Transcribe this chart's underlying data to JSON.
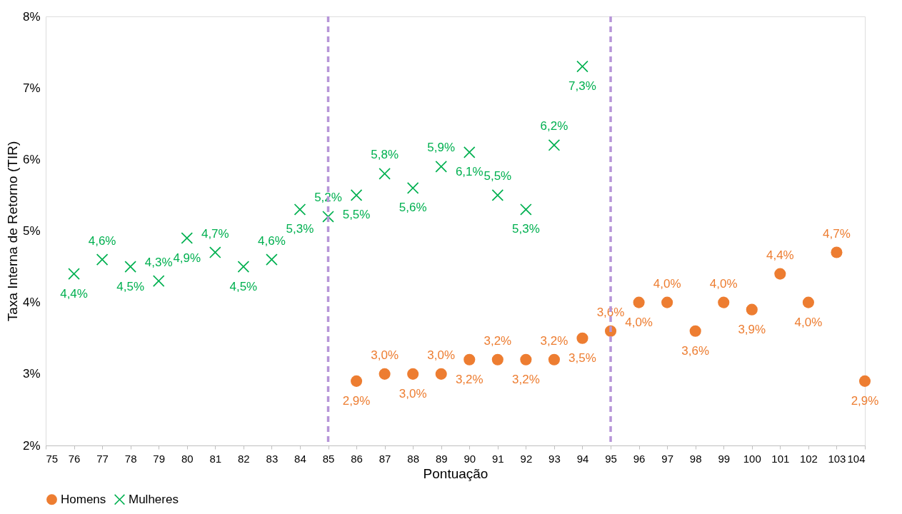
{
  "chart_data": {
    "type": "scatter",
    "xlabel": "Pontuação",
    "ylabel": "Taxa Interna de Retorno (TIR)",
    "xlim": [
      75,
      104
    ],
    "xticks": [
      75,
      76,
      77,
      78,
      79,
      80,
      81,
      82,
      83,
      84,
      85,
      86,
      87,
      88,
      89,
      90,
      91,
      92,
      93,
      94,
      95,
      96,
      97,
      98,
      99,
      100,
      101,
      102,
      103,
      104
    ],
    "ylim": [
      2,
      8
    ],
    "yticks": [
      {
        "value": 2,
        "label": "2%"
      },
      {
        "value": 3,
        "label": "3%"
      },
      {
        "value": 4,
        "label": "4%"
      },
      {
        "value": 5,
        "label": "5%"
      },
      {
        "value": 6,
        "label": "6%"
      },
      {
        "value": 7,
        "label": "7%"
      },
      {
        "value": 8,
        "label": "8%"
      }
    ],
    "grid": false,
    "legend": "bottom",
    "series": [
      {
        "name": "Homens",
        "color": "#ed7d31",
        "marker": "circle",
        "x": [
          86,
          87,
          88,
          89,
          90,
          91,
          92,
          93,
          94,
          95,
          96,
          97,
          98,
          99,
          100,
          101,
          102,
          103,
          104
        ],
        "values": [
          2.9,
          3.0,
          3.0,
          3.0,
          3.2,
          3.2,
          3.2,
          3.2,
          3.5,
          3.6,
          4.0,
          4.0,
          3.6,
          4.0,
          3.9,
          4.4,
          4.0,
          4.7,
          2.9
        ],
        "value_labels": [
          "2,9%",
          "3,0%",
          "3,0%",
          "3,0%",
          "3,2%",
          "3,2%",
          "3,2%",
          "3,2%",
          "3,5%",
          "3,6%",
          "4,0%",
          "4,0%",
          "3,6%",
          "4,0%",
          "3,9%",
          "4,4%",
          "4,0%",
          "4,7%",
          "2,9%"
        ]
      },
      {
        "name": "Mulheres",
        "color": "#00b050",
        "marker": "cross",
        "x": [
          76,
          77,
          78,
          79,
          80,
          81,
          82,
          83,
          84,
          85,
          86,
          87,
          88,
          89,
          90,
          91,
          92,
          93,
          94
        ],
        "values": [
          4.4,
          4.6,
          4.5,
          4.3,
          4.9,
          4.7,
          4.5,
          4.6,
          5.3,
          5.2,
          5.5,
          5.8,
          5.6,
          5.9,
          6.1,
          5.5,
          5.3,
          6.2,
          7.3
        ],
        "value_labels": [
          "4,4%",
          "4,6%",
          "4,5%",
          "4,3%",
          "4,9%",
          "4,7%",
          "4,5%",
          "4,6%",
          "5,3%",
          "5,2%",
          "5,5%",
          "5,8%",
          "5,6%",
          "5,9%",
          "6,1%",
          "5,5%",
          "5,3%",
          "6,2%",
          "7,3%"
        ]
      }
    ],
    "ref_lines": [
      {
        "axis": "x",
        "value": 85,
        "color": "#b695d8",
        "line_style": "dashed"
      },
      {
        "axis": "x",
        "value": 95,
        "color": "#b695d8",
        "line_style": "dashed"
      }
    ]
  }
}
